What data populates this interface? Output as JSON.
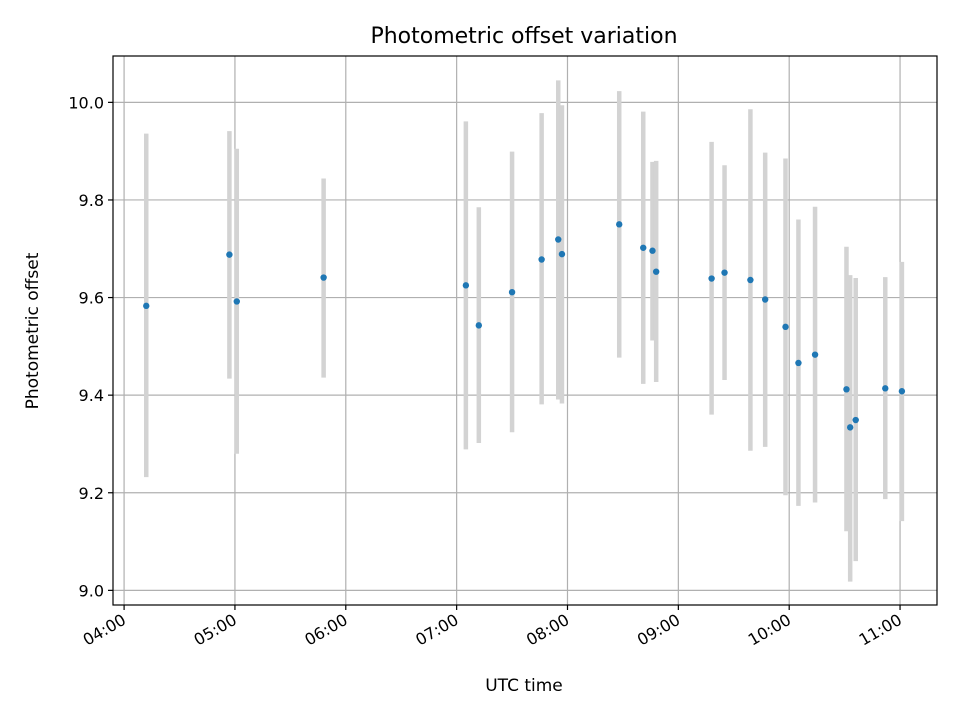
{
  "chart_data": {
    "type": "scatter",
    "title": "Photometric offset variation",
    "xlabel": "UTC time",
    "ylabel": "Photometric offset",
    "xlim": [
      "03:54",
      "11:20"
    ],
    "ylim": [
      8.97,
      10.095
    ],
    "grid": true,
    "x_ticks": [
      "04:00",
      "05:00",
      "06:00",
      "07:00",
      "08:00",
      "09:00",
      "10:00",
      "11:00"
    ],
    "y_ticks": [
      "9.0",
      "9.2",
      "9.4",
      "9.6",
      "9.8",
      "10.0"
    ],
    "colors": {
      "point": "#1f77b4",
      "error_bar": "#d3d3d3"
    },
    "series": [
      {
        "points": [
          {
            "x": "04:12",
            "y": 9.583,
            "ylo": 9.232,
            "yhi": 9.936
          },
          {
            "x": "04:57",
            "y": 9.688,
            "ylo": 9.434,
            "yhi": 9.941
          },
          {
            "x": "05:01",
            "y": 9.592,
            "ylo": 9.28,
            "yhi": 9.905
          },
          {
            "x": "05:48",
            "y": 9.641,
            "ylo": 9.436,
            "yhi": 9.844
          },
          {
            "x": "07:05",
            "y": 9.625,
            "ylo": 9.289,
            "yhi": 9.961
          },
          {
            "x": "07:12",
            "y": 9.543,
            "ylo": 9.302,
            "yhi": 9.785
          },
          {
            "x": "07:30",
            "y": 9.611,
            "ylo": 9.324,
            "yhi": 9.899
          },
          {
            "x": "07:46",
            "y": 9.678,
            "ylo": 9.381,
            "yhi": 9.978
          },
          {
            "x": "07:55",
            "y": 9.719,
            "ylo": 9.391,
            "yhi": 10.045
          },
          {
            "x": "07:57",
            "y": 9.689,
            "ylo": 9.383,
            "yhi": 9.994
          },
          {
            "x": "08:28",
            "y": 9.75,
            "ylo": 9.477,
            "yhi": 10.023
          },
          {
            "x": "08:41",
            "y": 9.702,
            "ylo": 9.423,
            "yhi": 9.981
          },
          {
            "x": "08:46",
            "y": 9.696,
            "ylo": 9.512,
            "yhi": 9.878
          },
          {
            "x": "08:48",
            "y": 9.653,
            "ylo": 9.427,
            "yhi": 9.88
          },
          {
            "x": "09:18",
            "y": 9.639,
            "ylo": 9.36,
            "yhi": 9.919
          },
          {
            "x": "09:25",
            "y": 9.651,
            "ylo": 9.431,
            "yhi": 9.871
          },
          {
            "x": "09:39",
            "y": 9.636,
            "ylo": 9.286,
            "yhi": 9.986
          },
          {
            "x": "09:47",
            "y": 9.596,
            "ylo": 9.294,
            "yhi": 9.897
          },
          {
            "x": "09:58",
            "y": 9.54,
            "ylo": 9.195,
            "yhi": 9.885
          },
          {
            "x": "10:05",
            "y": 9.466,
            "ylo": 9.173,
            "yhi": 9.76
          },
          {
            "x": "10:14",
            "y": 9.483,
            "ylo": 9.18,
            "yhi": 9.786
          },
          {
            "x": "10:31",
            "y": 9.412,
            "ylo": 9.121,
            "yhi": 9.704
          },
          {
            "x": "10:33",
            "y": 9.334,
            "ylo": 9.018,
            "yhi": 9.646
          },
          {
            "x": "10:36",
            "y": 9.349,
            "ylo": 9.06,
            "yhi": 9.64
          },
          {
            "x": "10:52",
            "y": 9.414,
            "ylo": 9.187,
            "yhi": 9.642
          },
          {
            "x": "11:01",
            "y": 9.408,
            "ylo": 9.142,
            "yhi": 9.673
          }
        ]
      }
    ]
  }
}
